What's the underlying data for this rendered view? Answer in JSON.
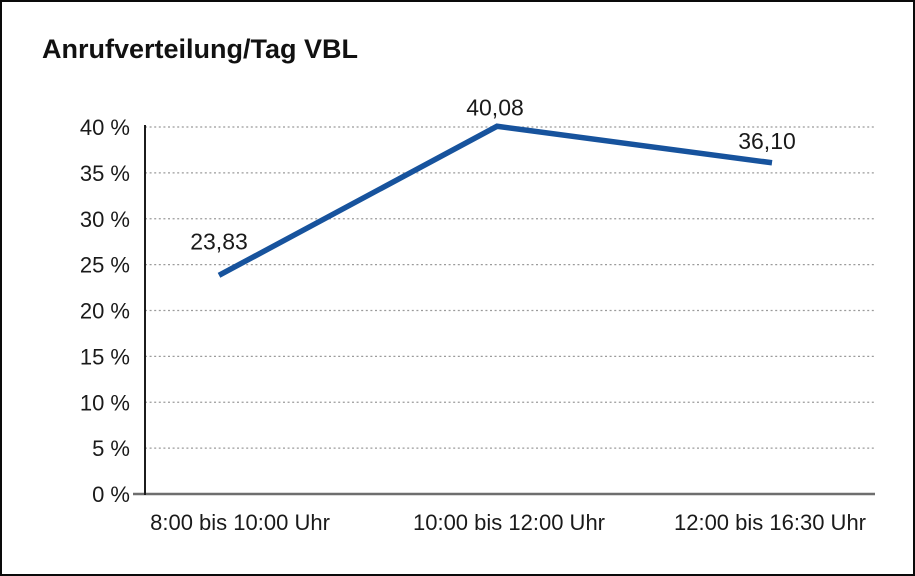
{
  "header": {
    "title": "Anrufverteilung/Tag VBL"
  },
  "chart_data": {
    "type": "line",
    "title": "Anrufverteilung/Tag VBL",
    "categories": [
      "8:00 bis 10:00 Uhr",
      "10:00 bis 12:00 Uhr",
      "12:00 bis 16:30 Uhr"
    ],
    "series": [
      {
        "name": "Anrufverteilung/Tag VBL",
        "values": [
          23.83,
          40.08,
          36.1
        ]
      }
    ],
    "data_labels": [
      "23,83",
      "40,08",
      "36,10"
    ],
    "xlabel": "",
    "ylabel": "",
    "ylim": [
      0,
      40
    ],
    "y_ticks": [
      0,
      5,
      10,
      15,
      20,
      25,
      30,
      35,
      40
    ],
    "y_tick_labels": [
      "0 %",
      "5 %",
      "10 %",
      "15 %",
      "20 %",
      "25 %",
      "30 %",
      "35 %",
      "40 %"
    ],
    "grid": "horizontal-dotted",
    "legend": "none",
    "colors": {
      "line": "#17539D",
      "grid": "#9b9b9b",
      "axis_y": "#1c1c1c",
      "axis_x": "#6e6e6e",
      "text": "#1a1a1a",
      "background": "#ffffff",
      "frame_border": "#0a0a0a"
    }
  }
}
